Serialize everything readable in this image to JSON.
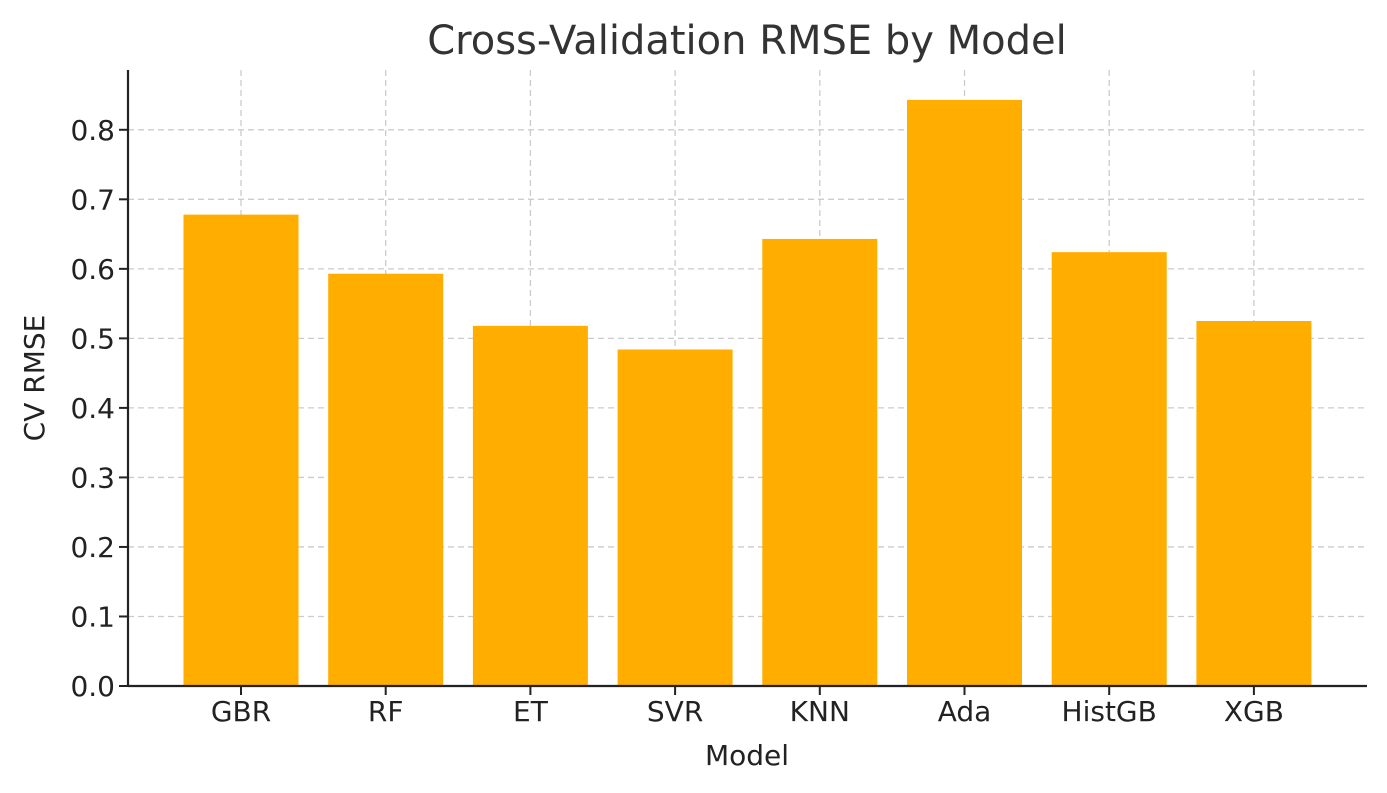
{
  "chart_data": {
    "type": "bar",
    "title": "Cross-Validation RMSE by Model",
    "xlabel": "Model",
    "ylabel": "CV RMSE",
    "categories": [
      "GBR",
      "RF",
      "ET",
      "SVR",
      "KNN",
      "Ada",
      "HistGB",
      "XGB"
    ],
    "values": [
      0.678,
      0.593,
      0.518,
      0.484,
      0.643,
      0.843,
      0.624,
      0.525
    ],
    "ylim": [
      0,
      0.886
    ],
    "yticks": [
      "0.0",
      "0.1",
      "0.2",
      "0.3",
      "0.4",
      "0.5",
      "0.6",
      "0.7",
      "0.8"
    ],
    "grid": true,
    "bar_color": "#FFAE00"
  }
}
